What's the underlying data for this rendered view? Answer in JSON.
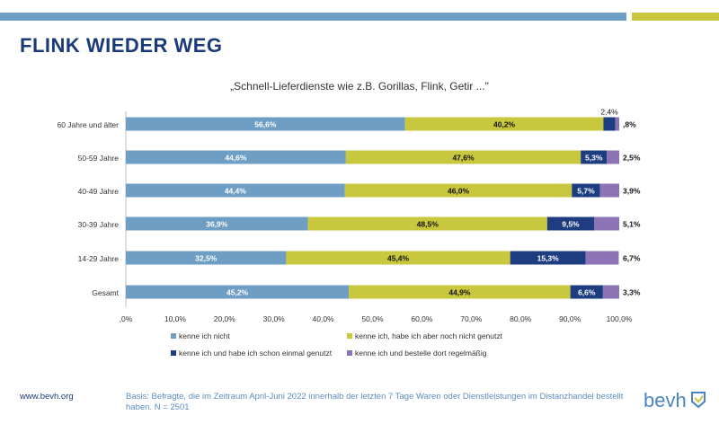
{
  "header": {
    "title": "FLINK WIEDER WEG",
    "colors": {
      "bar_primary": "#6f9ec4",
      "bar_accent": "#c9c73e"
    }
  },
  "chart_data": {
    "type": "bar",
    "orientation": "horizontal",
    "stacked": true,
    "title": "„Schnell-Lieferdienste wie z.B. Gorillas, Flink, Getir ...\"",
    "categories": [
      "60 Jahre und älter",
      "50-59 Jahre",
      "40-49 Jahre",
      "30-39 Jahre",
      "14-29 Jahre",
      "Gesamt"
    ],
    "series": [
      {
        "name": "kenne ich nicht",
        "color": "#6f9ec4",
        "values": [
          56.6,
          44.6,
          44.4,
          36.9,
          32.5,
          45.2
        ],
        "labels": [
          "56,6%",
          "44,6%",
          "44,4%",
          "36,9%",
          "32,5%",
          "45,2%"
        ]
      },
      {
        "name": "kenne ich, habe ich aber noch nicht genutzt",
        "color": "#c9c73e",
        "values": [
          40.2,
          47.6,
          46.0,
          48.5,
          45.4,
          44.9
        ],
        "labels": [
          "40,2%",
          "47,6%",
          "46,0%",
          "48,5%",
          "45,4%",
          "44,9%"
        ]
      },
      {
        "name": "kenne ich und habe ich schon einmal genutzt",
        "color": "#1d3d80",
        "values": [
          2.4,
          5.3,
          5.7,
          9.5,
          15.3,
          6.6
        ],
        "labels": [
          "2,4%",
          "5,3%",
          "5,7%",
          "9,5%",
          "15,3%",
          "6,6%"
        ]
      },
      {
        "name": "kenne ich und bestelle dort regelmäßig",
        "color": "#8b73b6",
        "values": [
          0.8,
          2.5,
          3.9,
          5.1,
          6.7,
          3.3
        ],
        "labels": [
          ",8%",
          "2,5%",
          "3,9%",
          "5,1%",
          "6,7%",
          "3,3%"
        ]
      }
    ],
    "xlim": [
      0,
      100
    ],
    "xticks": [
      ",0%",
      "10,0%",
      "20,0%",
      "30,0%",
      "40,0%",
      "50,0%",
      "60,0%",
      "70,0%",
      "80,0%",
      "90,0%",
      "100,0%"
    ],
    "grid": false,
    "legend_position": "bottom"
  },
  "footer": {
    "url": "www.bevh.org",
    "note": "Basis: Befragte, die im Zeitraum April-Juni 2022 innerhalb der letzten 7 Tage Waren oder Dienstleistungen im Distanzhandel bestellt haben. N = 2501",
    "logo_text": "bevh"
  }
}
